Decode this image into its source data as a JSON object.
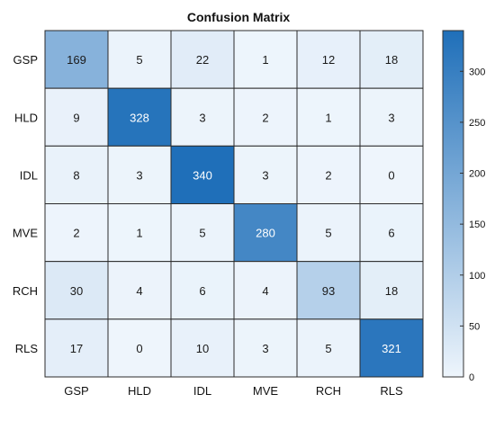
{
  "chart_data": {
    "type": "heatmap",
    "title": "Confusion Matrix",
    "row_labels": [
      "GSP",
      "HLD",
      "IDL",
      "MVE",
      "RCH",
      "RLS"
    ],
    "col_labels": [
      "GSP",
      "HLD",
      "IDL",
      "MVE",
      "RCH",
      "RLS"
    ],
    "values": [
      [
        169,
        5,
        22,
        1,
        12,
        18
      ],
      [
        9,
        328,
        3,
        2,
        1,
        3
      ],
      [
        8,
        3,
        340,
        3,
        2,
        0
      ],
      [
        2,
        1,
        5,
        280,
        5,
        6
      ],
      [
        30,
        4,
        6,
        4,
        93,
        18
      ],
      [
        17,
        0,
        10,
        3,
        5,
        321
      ]
    ],
    "colorbar": {
      "min": 0,
      "max": 340,
      "ticks": [
        0,
        50,
        100,
        150,
        200,
        250,
        300
      ]
    },
    "colors": {
      "low": "#eef5fc",
      "high": "#1f6fb9",
      "text_dark": "#1a1a1a",
      "text_light": "#ffffff",
      "grid": "#2b2b2b"
    },
    "grid": true,
    "legend": "colorbar-right"
  }
}
